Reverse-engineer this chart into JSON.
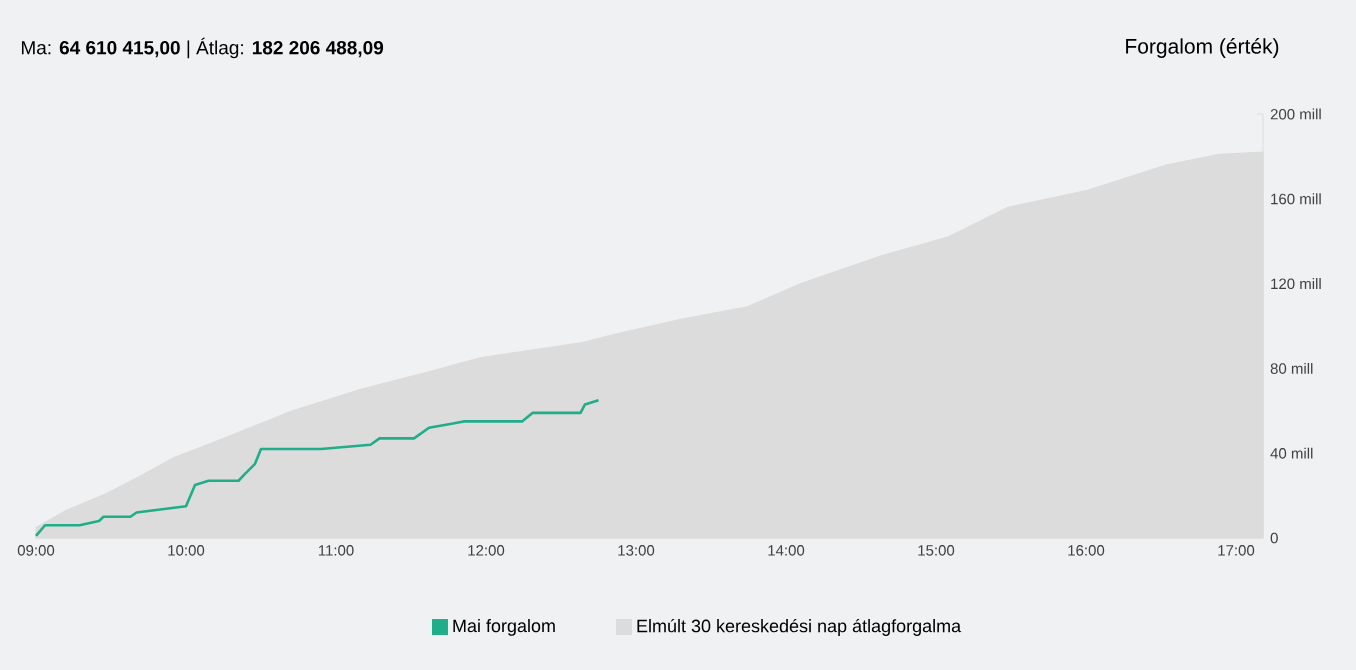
{
  "chart_data": {
    "type": "line",
    "title": "Ma: **64 610 415,00** | Átlag: **182 206 488,09**",
    "subtitle": "Forgalom (érték)",
    "xlim": [
      9,
      17.18
    ],
    "xticks": [
      {
        "value": 9,
        "label": "09:00"
      },
      {
        "value": 10,
        "label": "10:00"
      },
      {
        "value": 11,
        "label": "11:00"
      },
      {
        "value": 12,
        "label": "12:00"
      },
      {
        "value": 13,
        "label": "13:00"
      },
      {
        "value": 14,
        "label": "14:00"
      },
      {
        "value": 15,
        "label": "15:00"
      },
      {
        "value": 16,
        "label": "16:00"
      },
      {
        "value": 17,
        "label": "17:00"
      }
    ],
    "ylim": [
      0,
      200
    ],
    "yticks": [
      0,
      {
        "value": 40,
        "label": "40 mill"
      },
      {
        "value": 80,
        "label": "80 mill"
      },
      {
        "value": 120,
        "label": "120 mill"
      },
      {
        "value": 160,
        "label": "160 mill"
      },
      {
        "value": 200,
        "label": "200 mill"
      }
    ],
    "legend": "bottom",
    "series": [
      {
        "name": "Mai forgalom",
        "color": "#1fad8a",
        "x": [
          9.0,
          9.06,
          9.14,
          9.29,
          9.42,
          9.45,
          9.63,
          9.67,
          10.0,
          10.06,
          10.15,
          10.35,
          10.39,
          10.46,
          10.5,
          10.9,
          11.23,
          11.29,
          11.52,
          11.62,
          11.78,
          11.85,
          12.24,
          12.31,
          12.63,
          12.66,
          12.75
        ],
        "values": [
          1,
          6,
          6,
          6,
          8,
          10,
          10,
          12,
          15,
          25,
          27,
          27,
          30,
          35,
          42,
          42,
          44,
          47,
          47,
          52,
          54,
          55,
          55,
          59,
          59,
          63,
          65
        ]
      },
      {
        "name": "Elmúlt 30 kereskedési nap átlagforgalma",
        "type": "area",
        "color": "#dcdcdc",
        "x": [
          9.0,
          9.2,
          9.47,
          9.69,
          9.92,
          10.18,
          10.71,
          11.16,
          11.65,
          11.96,
          12.63,
          12.85,
          13.29,
          13.74,
          14.1,
          14.63,
          15.08,
          15.48,
          16.01,
          16.54,
          16.89,
          17.18
        ],
        "values": [
          5,
          13,
          21,
          29,
          38,
          45,
          60,
          70,
          79,
          85,
          92,
          96,
          103,
          109,
          120,
          133,
          142,
          156,
          164,
          176,
          181,
          182
        ]
      }
    ]
  }
}
